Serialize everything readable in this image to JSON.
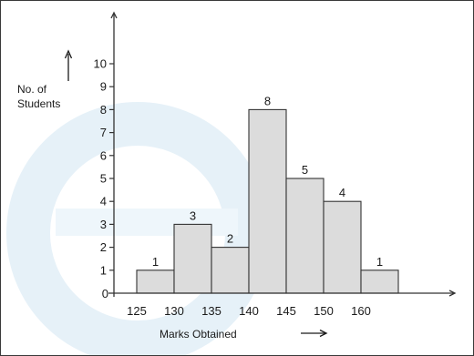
{
  "chart_data": {
    "type": "bar",
    "title": "",
    "xlabel": "Marks Obtained",
    "ylabel_lines": [
      "No. of",
      "Students"
    ],
    "categories": [
      "125",
      "130",
      "135",
      "140",
      "145",
      "150",
      "160"
    ],
    "values": [
      1,
      3,
      2,
      8,
      5,
      4,
      1
    ],
    "data_labels": [
      "1",
      "3",
      "2",
      "8",
      "5",
      "4",
      "1"
    ],
    "y_ticks": [
      "1",
      "2",
      "3",
      "4",
      "5",
      "6",
      "7",
      "8",
      "9",
      "10"
    ],
    "origin_label": "0",
    "ylim": [
      0,
      10
    ],
    "grid": false,
    "colors": {
      "bar_fill": "#dcdcdc",
      "bar_stroke": "#333333",
      "axis": "#333333",
      "watermark": "#e6f1f8"
    }
  }
}
